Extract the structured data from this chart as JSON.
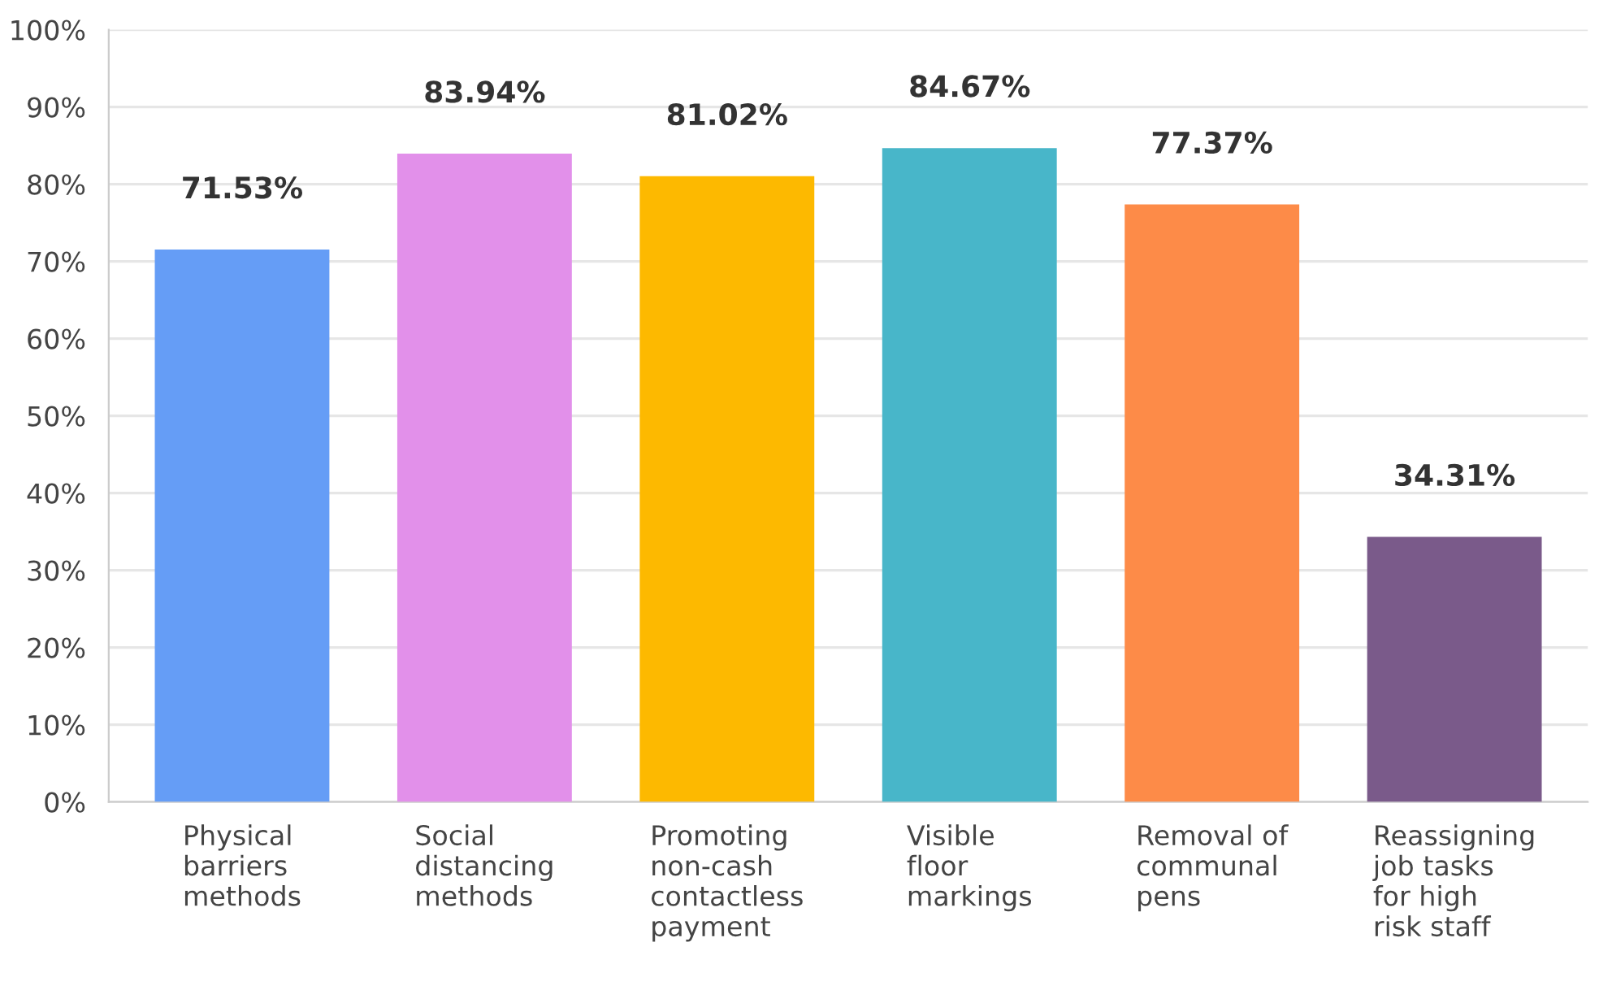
{
  "chart_data": {
    "type": "bar",
    "categories": [
      "Physical\nbarriers\nmethods",
      "Social\ndistancing\nmethods",
      "Promoting\nnon-cash\ncontactless\npayment",
      "Visible\nfloor\nmarkings",
      "Removal of\ncommunal\npens",
      "Reassigning\njob tasks\nfor high\nrisk staff"
    ],
    "values": [
      71.53,
      83.94,
      81.02,
      84.67,
      77.37,
      34.31
    ],
    "colors": [
      "#659df6",
      "#e290ea",
      "#fdb900",
      "#48b6c9",
      "#fd8b48",
      "#7a5a8a"
    ],
    "value_labels": [
      "71.53%",
      "83.94%",
      "81.02%",
      "84.67%",
      "77.37%",
      "34.31%"
    ],
    "ylim": [
      0,
      100
    ],
    "yticks": [
      {
        "value": 0,
        "label": "0%"
      },
      {
        "value": 10,
        "label": "10%"
      },
      {
        "value": 20,
        "label": "20%"
      },
      {
        "value": 30,
        "label": "30%"
      },
      {
        "value": 40,
        "label": "40%"
      },
      {
        "value": 50,
        "label": "50%"
      },
      {
        "value": 60,
        "label": "60%"
      },
      {
        "value": 70,
        "label": "70%"
      },
      {
        "value": 80,
        "label": "80%"
      },
      {
        "value": 90,
        "label": "90%"
      },
      {
        "value": 100,
        "label": "100%"
      }
    ],
    "grid": "y"
  }
}
